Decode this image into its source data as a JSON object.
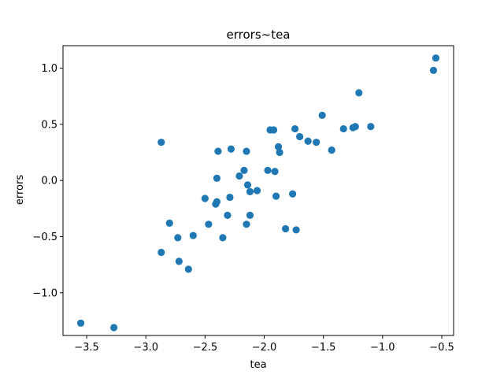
{
  "chart_data": {
    "type": "scatter",
    "title": "errors~tea",
    "xlabel": "tea",
    "ylabel": "errors",
    "xlim": [
      -3.7,
      -0.4
    ],
    "ylim": [
      -1.38,
      1.2
    ],
    "xticks": [
      -3.5,
      -3.0,
      -2.5,
      -2.0,
      -1.5,
      -1.0,
      -0.5
    ],
    "xtick_labels": [
      "−3.5",
      "−3.0",
      "−2.5",
      "−2.0",
      "−1.5",
      "−1.0",
      "−0.5"
    ],
    "yticks": [
      -1.0,
      -0.5,
      0.0,
      0.5,
      1.0
    ],
    "ytick_labels": [
      "−1.0",
      "−0.5",
      "0.0",
      "0.5",
      "1.0"
    ],
    "grid": false,
    "marker_color": "#1f77b4",
    "series": [
      {
        "x": [
          -3.55,
          -3.27,
          -2.87,
          -2.87,
          -2.8,
          -2.73,
          -2.72,
          -2.64,
          -2.6,
          -2.5,
          -2.47,
          -2.41,
          -2.4,
          -2.4,
          -2.39,
          -2.35,
          -2.31,
          -2.28,
          -2.29,
          -2.21,
          -2.17,
          -2.15,
          -2.15,
          -2.14,
          -2.12,
          -2.12,
          -2.06,
          -1.97,
          -1.95,
          -1.92,
          -1.91,
          -1.9,
          -1.88,
          -1.87,
          -1.82,
          -1.76,
          -1.74,
          -1.73,
          -1.7,
          -1.63,
          -1.56,
          -1.51,
          -1.43,
          -1.33,
          -1.25,
          -1.23,
          -1.2,
          -1.1,
          -0.57,
          -0.55
        ],
        "y": [
          -1.27,
          -1.31,
          0.34,
          -0.64,
          -0.38,
          -0.51,
          -0.72,
          -0.79,
          -0.49,
          -0.16,
          -0.39,
          -0.21,
          -0.19,
          0.02,
          0.26,
          -0.51,
          -0.31,
          0.28,
          -0.15,
          0.04,
          0.09,
          0.26,
          -0.39,
          -0.04,
          -0.31,
          -0.1,
          -0.09,
          0.09,
          0.45,
          0.45,
          0.08,
          -0.14,
          0.3,
          0.25,
          -0.43,
          -0.12,
          0.46,
          -0.44,
          0.39,
          0.35,
          0.34,
          0.58,
          0.27,
          0.46,
          0.47,
          0.48,
          0.78,
          0.48,
          0.98,
          1.09
        ]
      }
    ]
  }
}
